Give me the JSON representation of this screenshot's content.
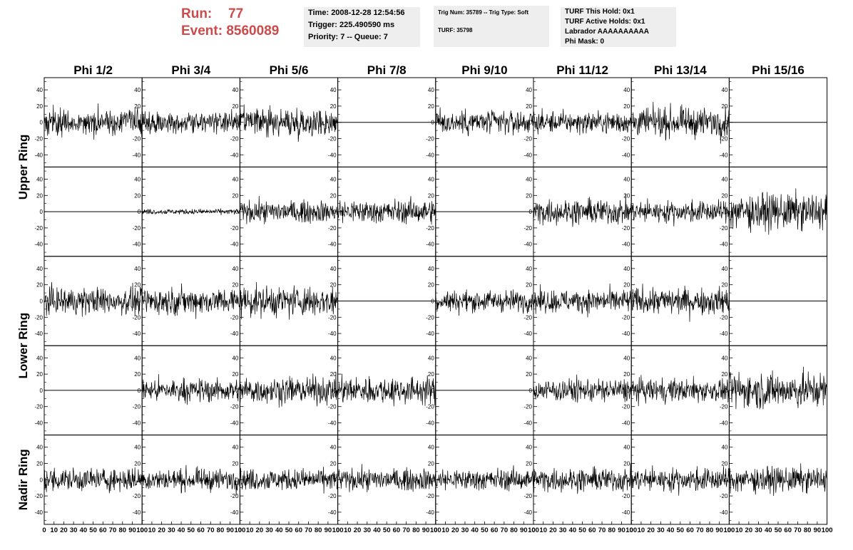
{
  "run": {
    "label": "Run:",
    "value": "77"
  },
  "event": {
    "label": "Event:",
    "value": "8560089"
  },
  "info_time": {
    "time": "Time: 2008-12-28 12:54:56",
    "trigger": "Trigger: 225.490590 ms",
    "priority": "Priority: 7 -- Queue: 7"
  },
  "info_trig": {
    "trig_line": "Trig Num: 35789 -- Trig Type: Soft",
    "turf_line": "TURF: 35798"
  },
  "info_turf": {
    "this_hold": "TURF This Hold: 0x1",
    "active_holds": "TURF Active Holds: 0x1",
    "labrador": "Labrador AAAAAAAAAA",
    "phi_mask": "Phi Mask: 0"
  },
  "columns": [
    "Phi 1/2",
    "Phi 3/4",
    "Phi 5/6",
    "Phi 7/8",
    "Phi 9/10",
    "Phi 11/12",
    "Phi 13/14",
    "Phi 15/16"
  ],
  "ring_labels": [
    "Upper Ring",
    "Lower Ring",
    "Nadir Ring"
  ],
  "y_ticks": [
    "40",
    "20",
    "0",
    "-20",
    "-40"
  ],
  "x_ticks": [
    "0",
    "10",
    "20",
    "30",
    "40",
    "50",
    "60",
    "70",
    "80",
    "90",
    "100"
  ],
  "chart_data": {
    "type": "line",
    "xlim": [
      0,
      100
    ],
    "ylim": [
      -55,
      55
    ],
    "rows": 5,
    "cols": 8,
    "panels": [
      [
        {
          "amp": 14,
          "flat": false
        },
        {
          "amp": 12,
          "flat": false
        },
        {
          "amp": 16,
          "flat": false
        },
        {
          "amp": 0,
          "flat": true
        },
        {
          "amp": 14,
          "flat": false
        },
        {
          "amp": 12,
          "flat": false
        },
        {
          "amp": 16,
          "flat": false
        },
        {
          "amp": 0,
          "flat": true
        }
      ],
      [
        {
          "amp": 0,
          "flat": true
        },
        {
          "amp": 3,
          "flat": false
        },
        {
          "amp": 12,
          "flat": false
        },
        {
          "amp": 13,
          "flat": false
        },
        {
          "amp": 0,
          "flat": true
        },
        {
          "amp": 14,
          "flat": false
        },
        {
          "amp": 12,
          "flat": false
        },
        {
          "amp": 20,
          "flat": false
        }
      ],
      [
        {
          "amp": 15,
          "flat": false
        },
        {
          "amp": 15,
          "flat": false
        },
        {
          "amp": 17,
          "flat": false
        },
        {
          "amp": 0,
          "flat": true
        },
        {
          "amp": 12,
          "flat": false
        },
        {
          "amp": 13,
          "flat": false
        },
        {
          "amp": 15,
          "flat": false
        },
        {
          "amp": 0,
          "flat": true
        }
      ],
      [
        {
          "amp": 0,
          "flat": true
        },
        {
          "amp": 13,
          "flat": false
        },
        {
          "amp": 15,
          "flat": false
        },
        {
          "amp": 15,
          "flat": false
        },
        {
          "amp": 0,
          "flat": true
        },
        {
          "amp": 13,
          "flat": false
        },
        {
          "amp": 13,
          "flat": false
        },
        {
          "amp": 20,
          "flat": false
        }
      ],
      [
        {
          "amp": 13,
          "flat": false
        },
        {
          "amp": 12,
          "flat": false
        },
        {
          "amp": 12,
          "flat": false
        },
        {
          "amp": 12,
          "flat": false
        },
        {
          "amp": 12,
          "flat": false
        },
        {
          "amp": 13,
          "flat": false
        },
        {
          "amp": 13,
          "flat": false
        },
        {
          "amp": 14,
          "flat": false
        }
      ]
    ]
  }
}
